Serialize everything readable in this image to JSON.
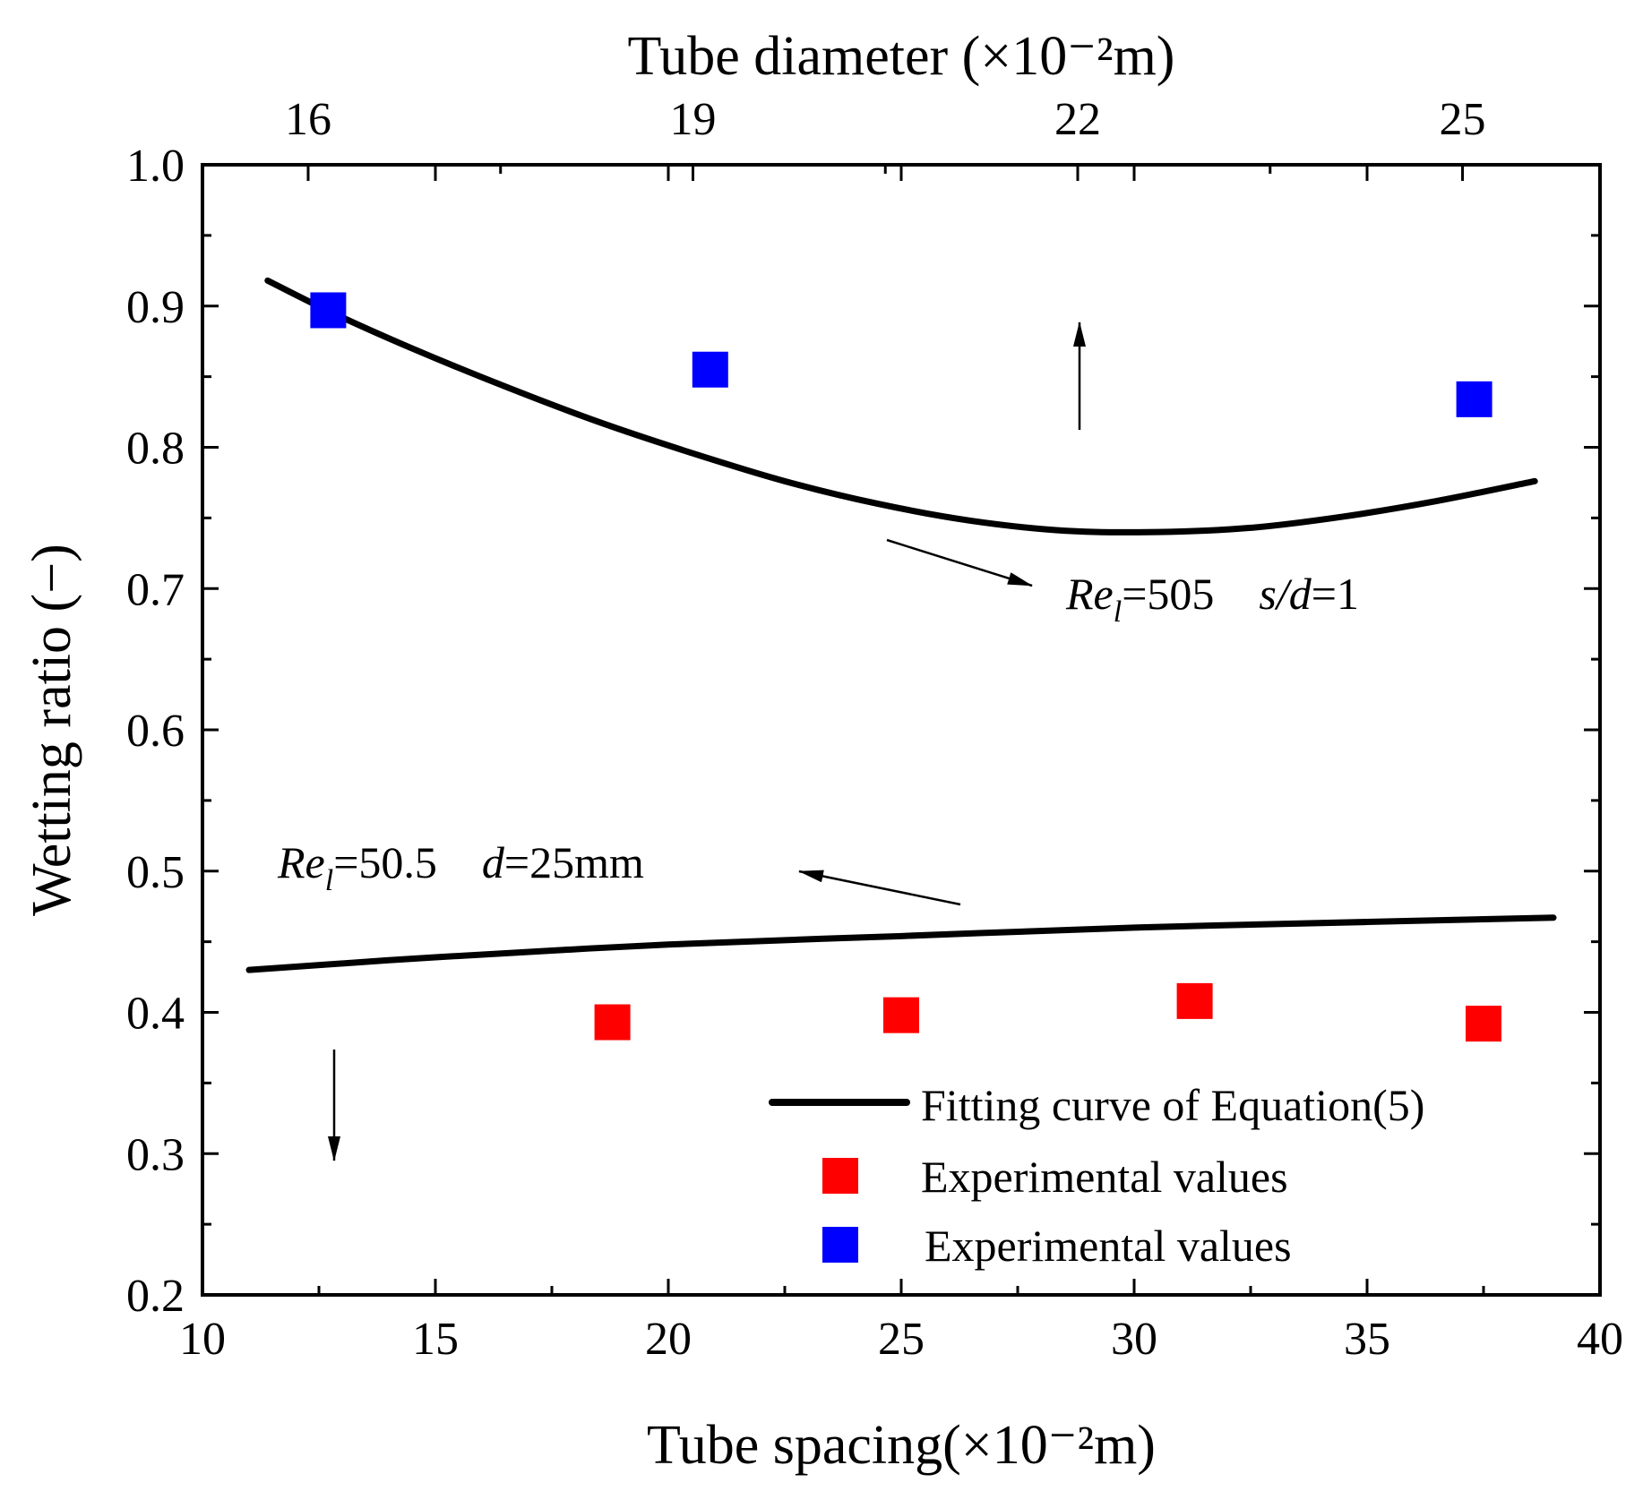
{
  "chart_data": {
    "type": "scatter",
    "xlabel": "Tube spacing(×10⁻²m)",
    "x2label": "Tube diameter (×10⁻²m)",
    "ylabel": "Wetting ratio (−)",
    "xlim": [
      10,
      40
    ],
    "ylim": [
      0.2,
      1.0
    ],
    "x2lim": [
      15.176,
      26.072
    ],
    "xticks": [
      "10",
      "15",
      "20",
      "25",
      "30",
      "35",
      "40"
    ],
    "yticks": [
      "0.2",
      "0.3",
      "0.4",
      "0.5",
      "0.6",
      "0.7",
      "0.8",
      "0.9",
      "1.0"
    ],
    "x2ticks": [
      "16",
      "19",
      "22",
      "25"
    ],
    "series": [
      {
        "name": "Fitting curve of Equation(5)",
        "kind": "line",
        "color": "#000000",
        "x": [
          11.4,
          12.8,
          14.5,
          16.5,
          18.5,
          20.5,
          22.5,
          24.5,
          26.5,
          28.5,
          30.5,
          32.5,
          34.5,
          36.5,
          38.6
        ],
        "y": [
          0.918,
          0.895,
          0.87,
          0.843,
          0.818,
          0.796,
          0.776,
          0.76,
          0.748,
          0.741,
          0.74,
          0.743,
          0.751,
          0.762,
          0.776
        ]
      },
      {
        "name": "Fitting curve of Equation(5)",
        "kind": "line",
        "color": "#000000",
        "x": [
          11.0,
          15,
          20,
          25,
          30,
          35,
          39.0
        ],
        "y": [
          0.43,
          0.439,
          0.448,
          0.454,
          0.46,
          0.464,
          0.467
        ]
      },
      {
        "name": "Experimental values",
        "kind": "marker",
        "color": "#ff0000",
        "x": [
          18.8,
          25.0,
          31.3,
          37.5
        ],
        "y": [
          0.393,
          0.398,
          0.408,
          0.392
        ]
      },
      {
        "name": "Experimental values",
        "kind": "marker",
        "color": "#0000ff",
        "x": [
          12.7,
          20.9,
          37.3
        ],
        "y": [
          0.897,
          0.855,
          0.834
        ]
      }
    ],
    "annotations": [
      {
        "name": "re505",
        "prefix": "Re",
        "sub": "l",
        "value": "=505",
        "gap": "    ",
        "s_prefix": "s/d",
        "s_value": "=1"
      },
      {
        "name": "re50",
        "prefix": "Re",
        "sub": "l",
        "value": "=50.5",
        "gap": "    ",
        "s_prefix": "d",
        "s_value": "=25mm"
      }
    ],
    "legend": {
      "position": "bottom-right",
      "entries": [
        "Fitting curve of Equation(5)",
        "Experimental values",
        "Experimental values"
      ]
    }
  }
}
